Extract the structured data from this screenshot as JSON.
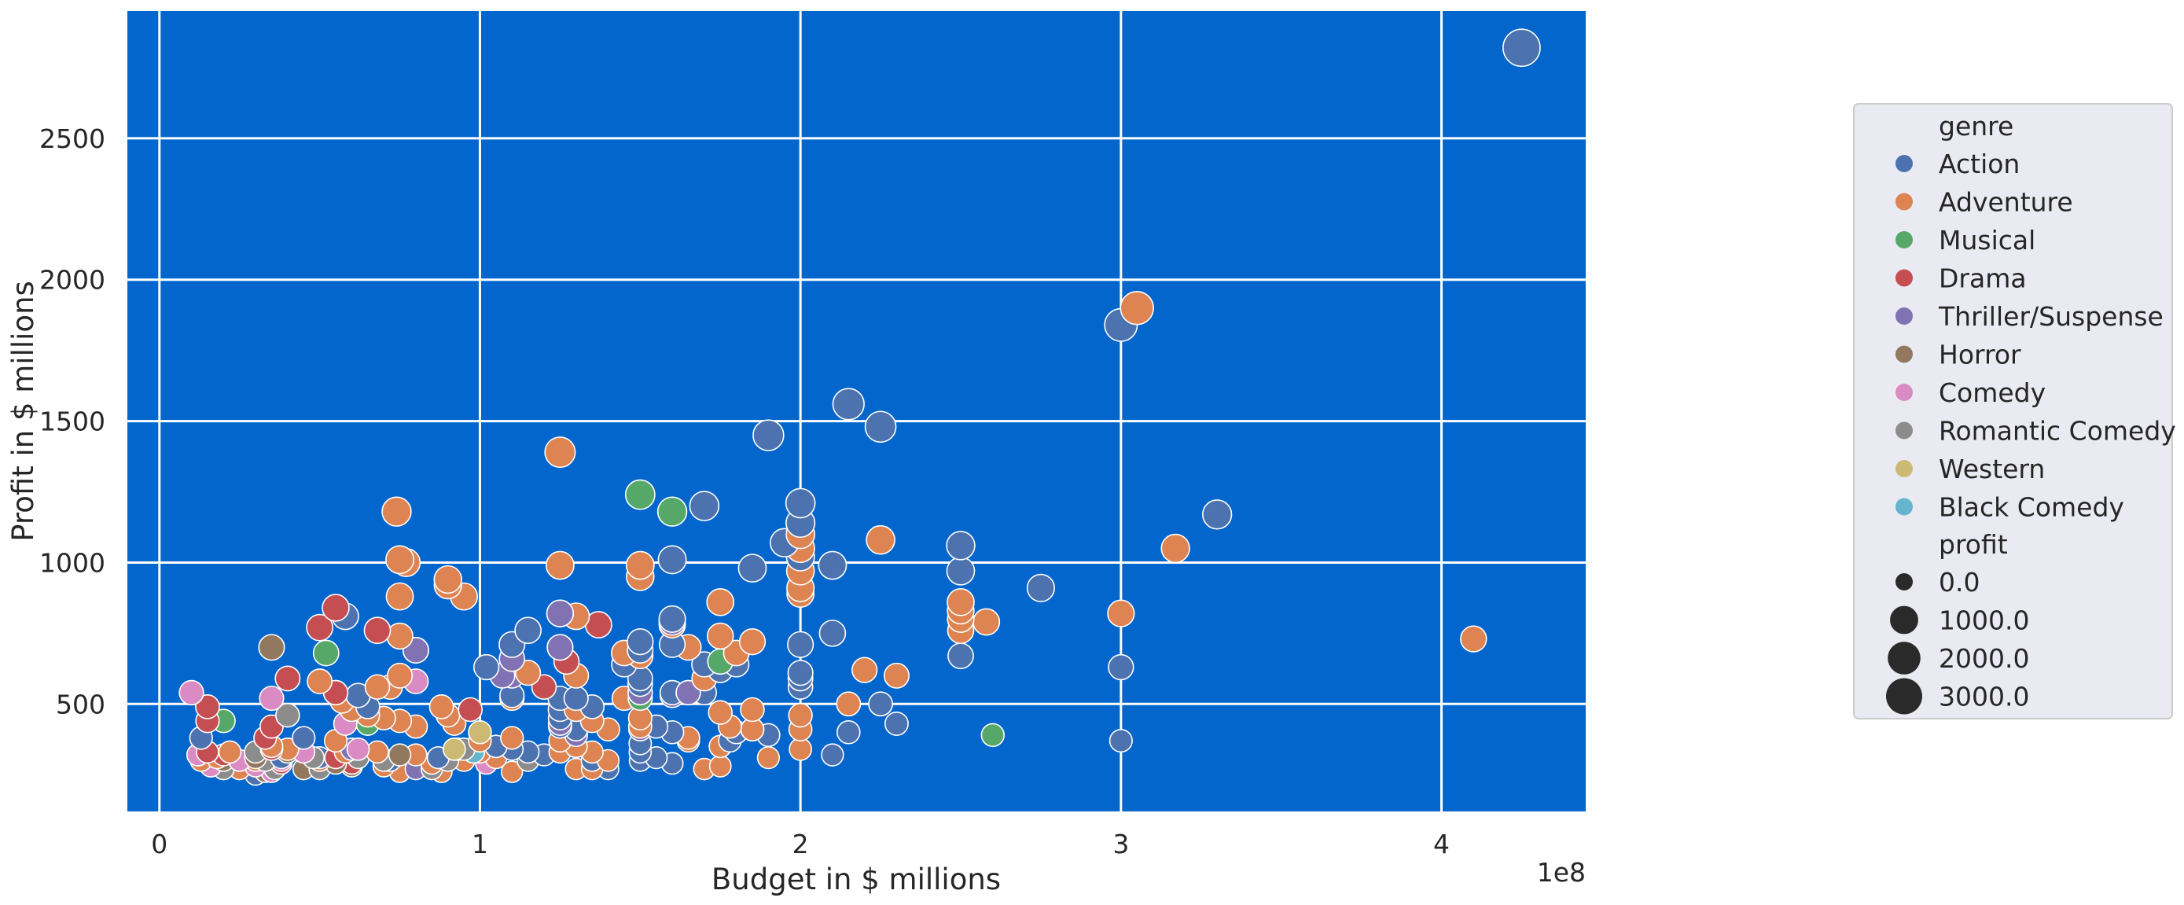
{
  "chart_data": {
    "type": "scatter",
    "title": "",
    "xlabel": "Budget in $ millions",
    "ylabel": "Profit in $ millions",
    "x_offset_label": "1e8",
    "xlim": [
      -0.1,
      4.45
    ],
    "ylim": [
      120,
      2950
    ],
    "x_ticks": [
      0,
      1,
      2,
      3,
      4
    ],
    "x_tick_labels": [
      "0",
      "1",
      "2",
      "3",
      "4"
    ],
    "y_ticks": [
      500,
      1000,
      1500,
      2000,
      2500
    ],
    "y_tick_labels": [
      "500",
      "1000",
      "1500",
      "2000",
      "2500"
    ],
    "grid": true,
    "legend_position": "right",
    "legend": {
      "hue_title": "genre",
      "size_title": "profit",
      "size_entries": [
        {
          "label": "0.0",
          "value": 0
        },
        {
          "label": "1000.0",
          "value": 1000
        },
        {
          "label": "2000.0",
          "value": 2000
        },
        {
          "label": "3000.0",
          "value": 3000
        }
      ]
    },
    "colors": {
      "plot_background": "#0366cc",
      "legend_background": "#eaeaf2",
      "grid": "#ffffff",
      "marker_edge": "#ffffff",
      "size_legend_marker": "#2a2a2a"
    },
    "series": [
      {
        "name": "Action",
        "color": "#4c72b0",
        "points": [
          [
            4.25,
            2820
          ],
          [
            3.0,
            1840
          ],
          [
            2.15,
            1560
          ],
          [
            2.25,
            1480
          ],
          [
            1.9,
            1450
          ],
          [
            3.3,
            1170
          ],
          [
            2.0,
            1210
          ],
          [
            2.0,
            1140
          ],
          [
            1.95,
            1070
          ],
          [
            1.7,
            1200
          ],
          [
            2.0,
            1020
          ],
          [
            1.6,
            1010
          ],
          [
            1.85,
            980
          ],
          [
            2.1,
            990
          ],
          [
            2.5,
            1060
          ],
          [
            2.5,
            970
          ],
          [
            2.75,
            910
          ],
          [
            1.25,
            820
          ],
          [
            1.6,
            800
          ],
          [
            0.8,
            690
          ],
          [
            0.58,
            810
          ],
          [
            1.25,
            700
          ],
          [
            1.1,
            710
          ],
          [
            1.15,
            760
          ],
          [
            1.02,
            630
          ],
          [
            2.0,
            710
          ],
          [
            2.1,
            750
          ],
          [
            2.5,
            670
          ],
          [
            1.7,
            640
          ],
          [
            1.75,
            620
          ],
          [
            1.5,
            720
          ],
          [
            1.5,
            690
          ],
          [
            1.5,
            590
          ],
          [
            1.5,
            570
          ],
          [
            1.45,
            640
          ],
          [
            1.6,
            710
          ],
          [
            1.8,
            640
          ],
          [
            2.0,
            610
          ],
          [
            2.0,
            590
          ],
          [
            2.0,
            560
          ],
          [
            3.0,
            630
          ],
          [
            1.25,
            520
          ],
          [
            1.3,
            520
          ],
          [
            1.35,
            490
          ],
          [
            1.25,
            480
          ],
          [
            1.1,
            530
          ],
          [
            1.25,
            450
          ],
          [
            1.3,
            410
          ],
          [
            1.25,
            420
          ],
          [
            1.55,
            420
          ],
          [
            1.6,
            400
          ],
          [
            1.8,
            400
          ],
          [
            1.9,
            390
          ],
          [
            2.15,
            400
          ],
          [
            2.25,
            500
          ],
          [
            2.3,
            430
          ],
          [
            1.7,
            540
          ],
          [
            1.6,
            540
          ],
          [
            0.65,
            490
          ],
          [
            0.62,
            530
          ],
          [
            0.4,
            460
          ],
          [
            0.45,
            380
          ],
          [
            0.13,
            380
          ],
          [
            0.5,
            310
          ],
          [
            0.72,
            300
          ],
          [
            0.87,
            310
          ],
          [
            0.93,
            340
          ],
          [
            1.05,
            350
          ],
          [
            1.1,
            340
          ],
          [
            1.15,
            330
          ],
          [
            1.2,
            320
          ],
          [
            1.35,
            300
          ],
          [
            1.4,
            270
          ],
          [
            1.5,
            300
          ],
          [
            1.5,
            330
          ],
          [
            1.5,
            360
          ],
          [
            1.55,
            310
          ],
          [
            1.6,
            290
          ],
          [
            1.78,
            370
          ],
          [
            1.85,
            410
          ],
          [
            2.1,
            320
          ],
          [
            3.0,
            370
          ],
          [
            0.38,
            310
          ],
          [
            0.3,
            250
          ]
        ]
      },
      {
        "name": "Adventure",
        "color": "#dd8452",
        "points": [
          [
            3.05,
            1900
          ],
          [
            1.25,
            1390
          ],
          [
            0.74,
            1180
          ],
          [
            3.17,
            1050
          ],
          [
            2.25,
            1080
          ],
          [
            2.0,
            1100
          ],
          [
            2.0,
            1050
          ],
          [
            2.0,
            970
          ],
          [
            2.0,
            910
          ],
          [
            2.0,
            890
          ],
          [
            0.75,
            1010
          ],
          [
            0.77,
            1000
          ],
          [
            1.25,
            990
          ],
          [
            1.5,
            990
          ],
          [
            1.5,
            950
          ],
          [
            0.9,
            940
          ],
          [
            0.9,
            920
          ],
          [
            0.95,
            880
          ],
          [
            0.75,
            880
          ],
          [
            1.75,
            860
          ],
          [
            2.5,
            860
          ],
          [
            2.5,
            830
          ],
          [
            2.5,
            800
          ],
          [
            2.5,
            760
          ],
          [
            2.58,
            790
          ],
          [
            3.0,
            820
          ],
          [
            4.1,
            730
          ],
          [
            1.3,
            810
          ],
          [
            0.75,
            740
          ],
          [
            1.6,
            780
          ],
          [
            1.75,
            740
          ],
          [
            1.85,
            720
          ],
          [
            1.65,
            700
          ],
          [
            1.8,
            680
          ],
          [
            1.45,
            680
          ],
          [
            1.5,
            670
          ],
          [
            1.15,
            610
          ],
          [
            1.3,
            600
          ],
          [
            0.75,
            600
          ],
          [
            0.72,
            560
          ],
          [
            0.68,
            560
          ],
          [
            0.5,
            580
          ],
          [
            0.55,
            540
          ],
          [
            0.57,
            510
          ],
          [
            0.6,
            480
          ],
          [
            0.65,
            460
          ],
          [
            0.7,
            450
          ],
          [
            0.75,
            440
          ],
          [
            0.8,
            420
          ],
          [
            0.88,
            490
          ],
          [
            0.9,
            460
          ],
          [
            0.92,
            430
          ],
          [
            1.1,
            520
          ],
          [
            1.3,
            480
          ],
          [
            1.35,
            440
          ],
          [
            1.4,
            410
          ],
          [
            1.45,
            520
          ],
          [
            1.5,
            450
          ],
          [
            1.5,
            420
          ],
          [
            1.65,
            540
          ],
          [
            1.7,
            590
          ],
          [
            1.75,
            470
          ],
          [
            1.78,
            420
          ],
          [
            1.85,
            480
          ],
          [
            1.85,
            410
          ],
          [
            2.0,
            460
          ],
          [
            2.0,
            410
          ],
          [
            2.0,
            340
          ],
          [
            2.15,
            500
          ],
          [
            2.2,
            620
          ],
          [
            2.3,
            600
          ],
          [
            1.25,
            370
          ],
          [
            1.3,
            350
          ],
          [
            1.35,
            330
          ],
          [
            1.4,
            300
          ],
          [
            1.3,
            270
          ],
          [
            1.1,
            380
          ],
          [
            1.1,
            260
          ],
          [
            1.65,
            380
          ],
          [
            1.65,
            370
          ],
          [
            1.7,
            270
          ],
          [
            1.75,
            280
          ],
          [
            1.75,
            350
          ],
          [
            1.9,
            310
          ],
          [
            1.0,
            370
          ],
          [
            1.0,
            330
          ],
          [
            0.88,
            260
          ],
          [
            0.85,
            290
          ],
          [
            0.8,
            320
          ],
          [
            0.75,
            260
          ],
          [
            0.68,
            330
          ],
          [
            0.6,
            290
          ],
          [
            0.55,
            370
          ],
          [
            0.45,
            330
          ],
          [
            0.3,
            300
          ],
          [
            0.25,
            270
          ],
          [
            0.18,
            310
          ],
          [
            0.22,
            330
          ],
          [
            0.35,
            350
          ],
          [
            0.4,
            340
          ],
          [
            0.13,
            300
          ],
          [
            0.5,
            300
          ],
          [
            0.58,
            330
          ],
          [
            0.7,
            280
          ],
          [
            0.95,
            300
          ],
          [
            1.05,
            310
          ],
          [
            1.25,
            330
          ],
          [
            1.35,
            270
          ]
        ]
      },
      {
        "name": "Musical",
        "color": "#55a868",
        "points": [
          [
            1.5,
            1240
          ],
          [
            1.6,
            1180
          ],
          [
            0.52,
            680
          ],
          [
            1.75,
            650
          ],
          [
            1.5,
            520
          ],
          [
            0.2,
            440
          ],
          [
            0.65,
            430
          ],
          [
            2.6,
            390
          ],
          [
            0.12,
            320
          ],
          [
            1.5,
            540
          ]
        ]
      },
      {
        "name": "Drama",
        "color": "#c44e52",
        "points": [
          [
            0.55,
            840
          ],
          [
            0.5,
            770
          ],
          [
            0.68,
            760
          ],
          [
            1.37,
            780
          ],
          [
            0.4,
            590
          ],
          [
            1.27,
            650
          ],
          [
            1.2,
            560
          ],
          [
            0.15,
            490
          ],
          [
            0.97,
            480
          ],
          [
            0.15,
            440
          ],
          [
            0.35,
            420
          ],
          [
            0.33,
            380
          ],
          [
            0.35,
            340
          ],
          [
            0.55,
            310
          ],
          [
            0.15,
            330
          ],
          [
            0.2,
            320
          ],
          [
            0.38,
            290
          ],
          [
            0.6,
            290
          ],
          [
            0.55,
            540
          ]
        ]
      },
      {
        "name": "Thriller/Suspense",
        "color": "#8172b3",
        "points": [
          [
            1.25,
            820
          ],
          [
            1.6,
            790
          ],
          [
            1.25,
            700
          ],
          [
            0.8,
            690
          ],
          [
            1.1,
            660
          ],
          [
            1.1,
            600
          ],
          [
            1.07,
            600
          ],
          [
            1.5,
            540
          ],
          [
            1.6,
            530
          ],
          [
            1.5,
            410
          ],
          [
            1.25,
            430
          ],
          [
            1.3,
            390
          ],
          [
            0.6,
            340
          ],
          [
            0.8,
            270
          ],
          [
            1.65,
            540
          ]
        ]
      },
      {
        "name": "Horror",
        "color": "#937860",
        "points": [
          [
            0.35,
            700
          ],
          [
            0.3,
            310
          ],
          [
            0.25,
            300
          ],
          [
            0.45,
            270
          ],
          [
            0.55,
            290
          ],
          [
            0.6,
            280
          ],
          [
            0.75,
            320
          ],
          [
            0.4,
            330
          ],
          [
            0.2,
            300
          ],
          [
            0.33,
            260
          ]
        ]
      },
      {
        "name": "Comedy",
        "color": "#da8bc3",
        "points": [
          [
            0.1,
            540
          ],
          [
            0.35,
            520
          ],
          [
            0.8,
            580
          ],
          [
            0.58,
            430
          ],
          [
            0.12,
            320
          ],
          [
            0.16,
            280
          ],
          [
            0.25,
            300
          ],
          [
            0.3,
            280
          ],
          [
            0.35,
            260
          ],
          [
            0.38,
            300
          ],
          [
            0.45,
            330
          ],
          [
            1.02,
            290
          ],
          [
            0.62,
            340
          ]
        ]
      },
      {
        "name": "Romantic Comedy",
        "color": "#8c8c8c",
        "points": [
          [
            0.4,
            460
          ],
          [
            0.7,
            300
          ],
          [
            0.9,
            300
          ],
          [
            0.95,
            340
          ],
          [
            0.3,
            330
          ],
          [
            0.48,
            310
          ],
          [
            0.2,
            270
          ],
          [
            0.33,
            300
          ],
          [
            1.15,
            300
          ],
          [
            0.85,
            270
          ],
          [
            0.62,
            310
          ],
          [
            0.5,
            270
          ],
          [
            0.36,
            270
          ]
        ]
      },
      {
        "name": "Western",
        "color": "#ccb974",
        "points": [
          [
            1.0,
            400
          ],
          [
            0.92,
            340
          ]
        ]
      },
      {
        "name": "Black Comedy",
        "color": "#64b5cd",
        "points": [
          [
            0.98,
            330
          ]
        ]
      }
    ]
  }
}
